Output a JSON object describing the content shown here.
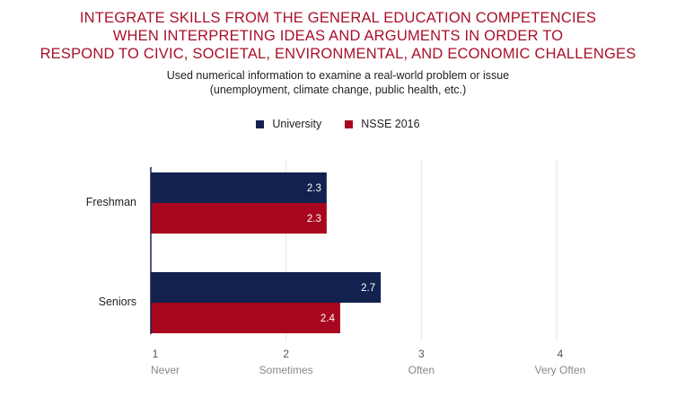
{
  "title_lines": [
    "INTEGRATE SKILLS FROM THE GENERAL EDUCATION COMPETENCIES",
    "WHEN INTERPRETING IDEAS AND ARGUMENTS IN ORDER TO",
    "RESPOND TO CIVIC, SOCIETAL, ENVIRONMENTAL, AND ECONOMIC CHALLENGES"
  ],
  "subtitle_lines": [
    "Used numerical information to examine a real-world problem or issue",
    "(unemployment, climate change, public health, etc.)"
  ],
  "colors": {
    "title": "#a8102a",
    "university": "#13214f",
    "nsse": "#a8061e",
    "grid": "#e6e6e6",
    "axis": "#13214f"
  },
  "chart_data": {
    "type": "bar",
    "orientation": "horizontal",
    "categories": [
      "Freshman",
      "Seniors"
    ],
    "series": [
      {
        "name": "University",
        "values": [
          2.3,
          2.7
        ]
      },
      {
        "name": "NSSE 2016",
        "values": [
          2.3,
          2.4
        ]
      }
    ],
    "xlim": [
      1,
      4
    ],
    "x_ticks": [
      {
        "value": 1,
        "label": "1",
        "sublabel": "Never"
      },
      {
        "value": 2,
        "label": "2",
        "sublabel": "Sometimes"
      },
      {
        "value": 3,
        "label": "3",
        "sublabel": "Often"
      },
      {
        "value": 4,
        "label": "4",
        "sublabel": "Very Often"
      }
    ],
    "grid": true,
    "legend_position": "top-center"
  }
}
